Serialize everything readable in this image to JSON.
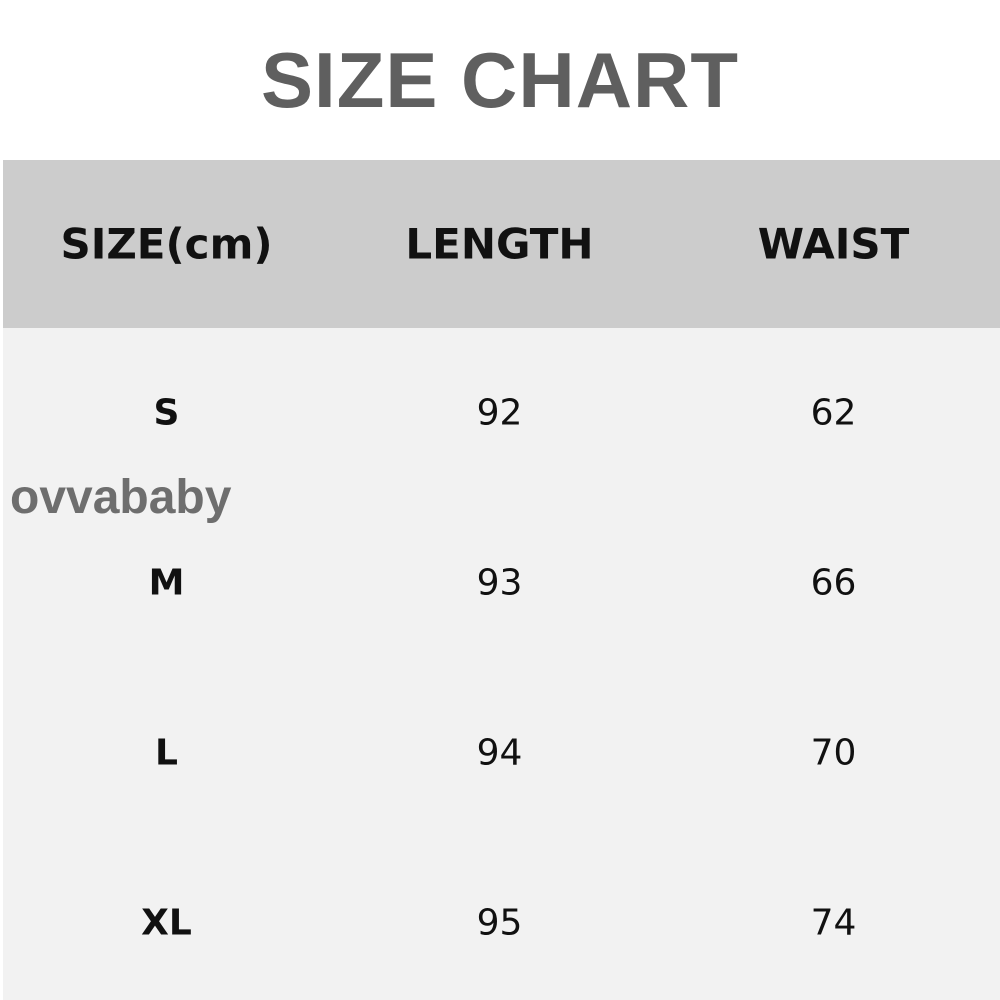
{
  "title": "SIZE CHART",
  "watermark": "ovvababy",
  "colors": {
    "header_bg": "#cccccc",
    "body_bg": "#f2f2f2",
    "title": "#5f5f5f"
  },
  "table": {
    "headers": [
      "SIZE(cm)",
      "LENGTH",
      "WAIST"
    ],
    "rows": [
      [
        "S",
        "92",
        "62"
      ],
      [
        "M",
        "93",
        "66"
      ],
      [
        "L",
        "94",
        "70"
      ],
      [
        "XL",
        "95",
        "74"
      ]
    ]
  }
}
